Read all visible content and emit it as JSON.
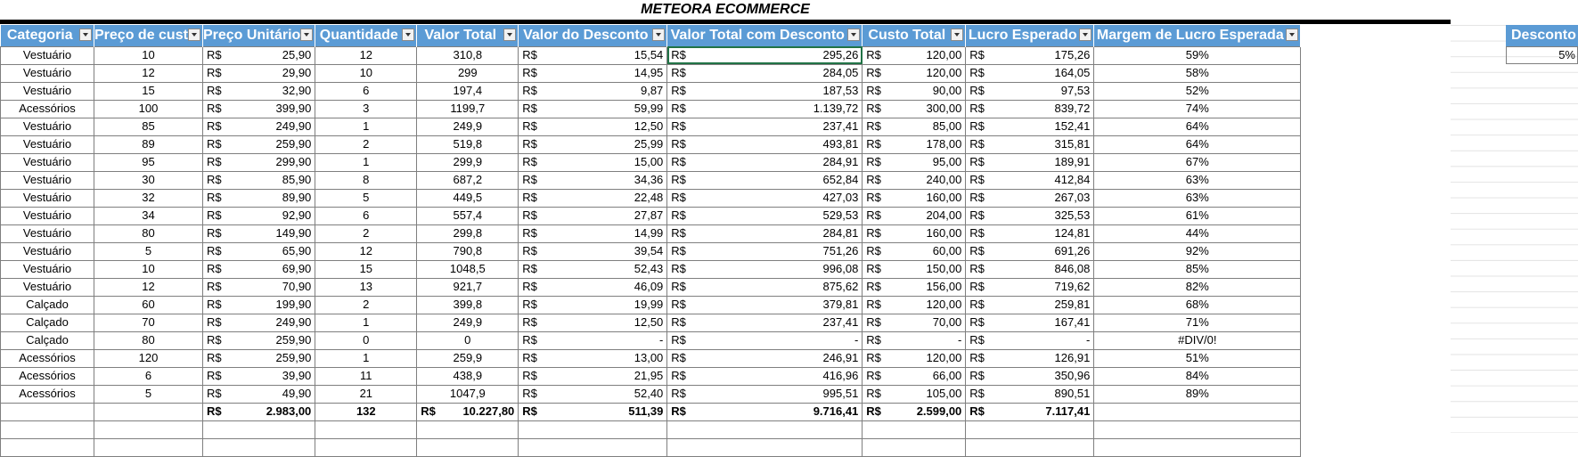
{
  "title": "METEORA ECOMMERCE",
  "columns": [
    "Categoria",
    "Preço de cust",
    "Preço Unitário",
    "Quantidade",
    "Valor Total",
    "Valor do Desconto",
    "Valor Total com Desconto",
    "Custo Total",
    "Lucro Esperado",
    "Margem de Lucro Esperada"
  ],
  "currency": "R$",
  "rows": [
    [
      "Vestuário",
      "10",
      "25,90",
      "12",
      "310,8",
      "15,54",
      "295,26",
      "120,00",
      "175,26",
      "59%"
    ],
    [
      "Vestuário",
      "12",
      "29,90",
      "10",
      "299",
      "14,95",
      "284,05",
      "120,00",
      "164,05",
      "58%"
    ],
    [
      "Vestuário",
      "15",
      "32,90",
      "6",
      "197,4",
      "9,87",
      "187,53",
      "90,00",
      "97,53",
      "52%"
    ],
    [
      "Acessórios",
      "100",
      "399,90",
      "3",
      "1199,7",
      "59,99",
      "1.139,72",
      "300,00",
      "839,72",
      "74%"
    ],
    [
      "Vestuário",
      "85",
      "249,90",
      "1",
      "249,9",
      "12,50",
      "237,41",
      "85,00",
      "152,41",
      "64%"
    ],
    [
      "Vestuário",
      "89",
      "259,90",
      "2",
      "519,8",
      "25,99",
      "493,81",
      "178,00",
      "315,81",
      "64%"
    ],
    [
      "Vestuário",
      "95",
      "299,90",
      "1",
      "299,9",
      "15,00",
      "284,91",
      "95,00",
      "189,91",
      "67%"
    ],
    [
      "Vestuário",
      "30",
      "85,90",
      "8",
      "687,2",
      "34,36",
      "652,84",
      "240,00",
      "412,84",
      "63%"
    ],
    [
      "Vestuário",
      "32",
      "89,90",
      "5",
      "449,5",
      "22,48",
      "427,03",
      "160,00",
      "267,03",
      "63%"
    ],
    [
      "Vestuário",
      "34",
      "92,90",
      "6",
      "557,4",
      "27,87",
      "529,53",
      "204,00",
      "325,53",
      "61%"
    ],
    [
      "Vestuário",
      "80",
      "149,90",
      "2",
      "299,8",
      "14,99",
      "284,81",
      "160,00",
      "124,81",
      "44%"
    ],
    [
      "Vestuário",
      "5",
      "65,90",
      "12",
      "790,8",
      "39,54",
      "751,26",
      "60,00",
      "691,26",
      "92%"
    ],
    [
      "Vestuário",
      "10",
      "69,90",
      "15",
      "1048,5",
      "52,43",
      "996,08",
      "150,00",
      "846,08",
      "85%"
    ],
    [
      "Vestuário",
      "12",
      "70,90",
      "13",
      "921,7",
      "46,09",
      "875,62",
      "156,00",
      "719,62",
      "82%"
    ],
    [
      "Calçado",
      "60",
      "199,90",
      "2",
      "399,8",
      "19,99",
      "379,81",
      "120,00",
      "259,81",
      "68%"
    ],
    [
      "Calçado",
      "70",
      "249,90",
      "1",
      "249,9",
      "12,50",
      "237,41",
      "70,00",
      "167,41",
      "71%"
    ],
    [
      "Calçado",
      "80",
      "259,90",
      "0",
      "0",
      "-",
      "-",
      "-",
      "-",
      "#DIV/0!"
    ],
    [
      "Acessórios",
      "120",
      "259,90",
      "1",
      "259,9",
      "13,00",
      "246,91",
      "120,00",
      "126,91",
      "51%"
    ],
    [
      "Acessórios",
      "6",
      "39,90",
      "11",
      "438,9",
      "21,95",
      "416,96",
      "66,00",
      "350,96",
      "84%"
    ],
    [
      "Acessórios",
      "5",
      "49,90",
      "21",
      "1047,9",
      "52,40",
      "995,51",
      "105,00",
      "890,51",
      "89%"
    ]
  ],
  "totals": {
    "preco_unitario": "2.983,00",
    "quantidade": "132",
    "valor_total": "10.227,80",
    "valor_desconto": "511,39",
    "valor_com_desconto": "9.716,41",
    "custo_total": "2.599,00",
    "lucro_esperado": "7.117,41"
  },
  "side": {
    "header": "Desconto",
    "value": "5%"
  },
  "icons": {
    "filter": "filter-dropdown-icon"
  },
  "colors": {
    "header": "#5b9bd5",
    "title_bar": "#000000"
  }
}
